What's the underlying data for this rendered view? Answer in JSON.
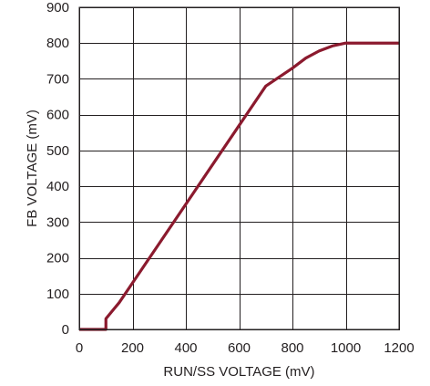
{
  "chart_data": {
    "type": "line",
    "title": "",
    "xlabel": "RUN/SS VOLTAGE (mV)",
    "ylabel": "FB VOLTAGE (mV)",
    "xlim": [
      0,
      1200
    ],
    "ylim": [
      0,
      900
    ],
    "x_ticks": [
      0,
      200,
      400,
      600,
      800,
      1000,
      1200
    ],
    "y_ticks": [
      0,
      100,
      200,
      300,
      400,
      500,
      600,
      700,
      800,
      900
    ],
    "grid": true,
    "legend": "none",
    "series": [
      {
        "color": "#8b1a2e",
        "points": [
          [
            0,
            0
          ],
          [
            100,
            0
          ],
          [
            100,
            30
          ],
          [
            150,
            75
          ],
          [
            200,
            130
          ],
          [
            300,
            240
          ],
          [
            400,
            350
          ],
          [
            500,
            460
          ],
          [
            600,
            570
          ],
          [
            700,
            680
          ],
          [
            800,
            730
          ],
          [
            850,
            758
          ],
          [
            900,
            778
          ],
          [
            950,
            792
          ],
          [
            1000,
            800
          ],
          [
            1200,
            800
          ]
        ]
      }
    ]
  }
}
